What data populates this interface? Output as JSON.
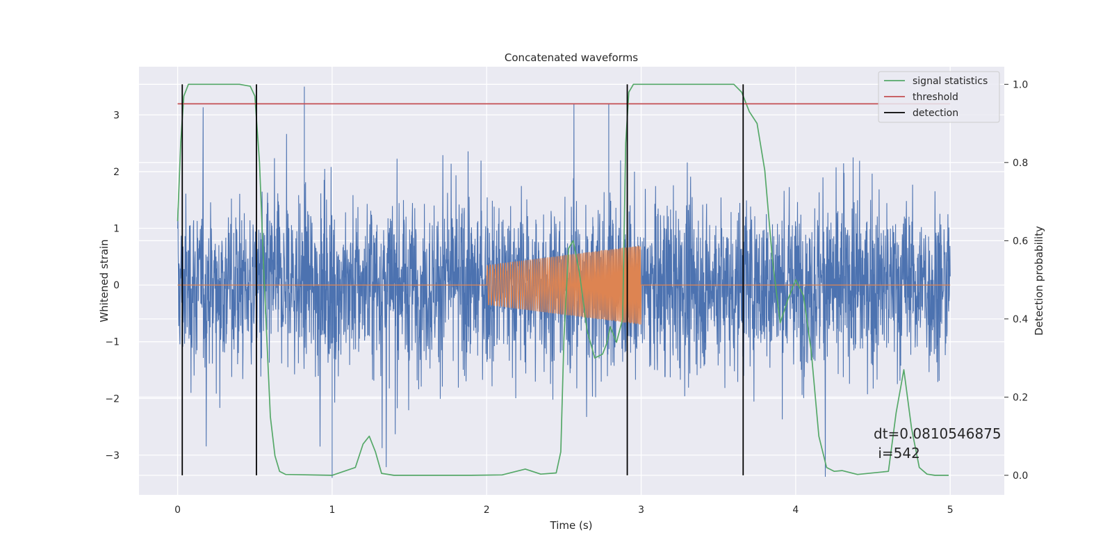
{
  "chart_data": {
    "type": "line",
    "title": "Concatenated waveforms",
    "xlabel": "Time (s)",
    "ylabel_left": "Whitened strain",
    "ylabel_right": "Detection probability",
    "xlim": [
      -0.25,
      5.35
    ],
    "ylim_left": [
      -3.7,
      3.85
    ],
    "ylim_right": [
      -0.05,
      1.045
    ],
    "xticks": [
      0,
      1,
      2,
      3,
      4,
      5
    ],
    "yticks_left": [
      -3,
      -2,
      -1,
      0,
      1,
      2,
      3
    ],
    "yticks_right": [
      0.0,
      0.2,
      0.4,
      0.6,
      0.8,
      1.0
    ],
    "yticklabels_left": [
      "−3",
      "−2",
      "−1",
      "0",
      "1",
      "2",
      "3"
    ],
    "yticklabels_right": [
      "0.0",
      "0.2",
      "0.4",
      "0.6",
      "0.8",
      "1.0"
    ],
    "grid": true,
    "legend_position": "top-right",
    "legend": [
      "signal statistics",
      "threshold",
      "detection"
    ],
    "colors": {
      "strain": "#4c72b0",
      "injection": "#dd8452",
      "signal_statistics": "#55a868",
      "threshold": "#c44e52",
      "detection": "#000000",
      "background": "#eaeaf2",
      "grid": "#ffffff"
    },
    "strain_noise": {
      "x_range": [
        0,
        5
      ],
      "amplitude_rms": 0.75,
      "peak_extremes": [
        3.5,
        -3.4
      ]
    },
    "injection_chirp": {
      "x_range": [
        2.0,
        3.0
      ],
      "amplitude_start": 0.35,
      "amplitude_end": 0.7
    },
    "series": [
      {
        "name": "signal statistics",
        "axis": "right",
        "x": [
          0.0,
          0.02,
          0.04,
          0.07,
          0.1,
          0.15,
          0.4,
          0.47,
          0.5,
          0.53,
          0.56,
          0.6,
          0.63,
          0.66,
          0.7,
          1.0,
          1.15,
          1.2,
          1.24,
          1.28,
          1.32,
          1.4,
          1.9,
          2.1,
          2.25,
          2.35,
          2.45,
          2.48,
          2.5,
          2.53,
          2.56,
          2.6,
          2.65,
          2.7,
          2.75,
          2.78,
          2.8,
          2.84,
          2.88,
          2.9,
          2.92,
          2.95,
          3.0,
          3.6,
          3.65,
          3.7,
          3.75,
          3.8,
          3.85,
          3.9,
          3.95,
          4.0,
          4.05,
          4.1,
          4.15,
          4.2,
          4.25,
          4.3,
          4.4,
          4.6,
          4.65,
          4.7,
          4.75,
          4.8,
          4.85,
          4.9,
          4.99
        ],
        "y": [
          0.65,
          0.85,
          0.97,
          1.0,
          1.0,
          1.0,
          1.0,
          0.995,
          0.97,
          0.8,
          0.5,
          0.15,
          0.05,
          0.01,
          0.002,
          0.0,
          0.02,
          0.08,
          0.1,
          0.06,
          0.005,
          0.0,
          0.0,
          0.001,
          0.016,
          0.003,
          0.006,
          0.06,
          0.35,
          0.58,
          0.6,
          0.52,
          0.37,
          0.3,
          0.31,
          0.34,
          0.38,
          0.34,
          0.4,
          0.85,
          0.98,
          1.0,
          1.0,
          1.0,
          0.98,
          0.93,
          0.9,
          0.78,
          0.55,
          0.39,
          0.45,
          0.5,
          0.46,
          0.32,
          0.1,
          0.02,
          0.01,
          0.012,
          0.002,
          0.01,
          0.16,
          0.27,
          0.12,
          0.02,
          0.003,
          0.0,
          0.0
        ]
      },
      {
        "name": "threshold",
        "axis": "right",
        "x": [
          0.0,
          5.0
        ],
        "y": [
          0.95,
          0.95
        ]
      },
      {
        "name": "detection",
        "axis": "right",
        "type": "vlines",
        "x": [
          0.03,
          0.51,
          2.91,
          3.66
        ],
        "ymin": 0.0,
        "ymax": 1.0
      }
    ],
    "annotations": [
      "dt=0.0810546875",
      " i=542"
    ]
  }
}
